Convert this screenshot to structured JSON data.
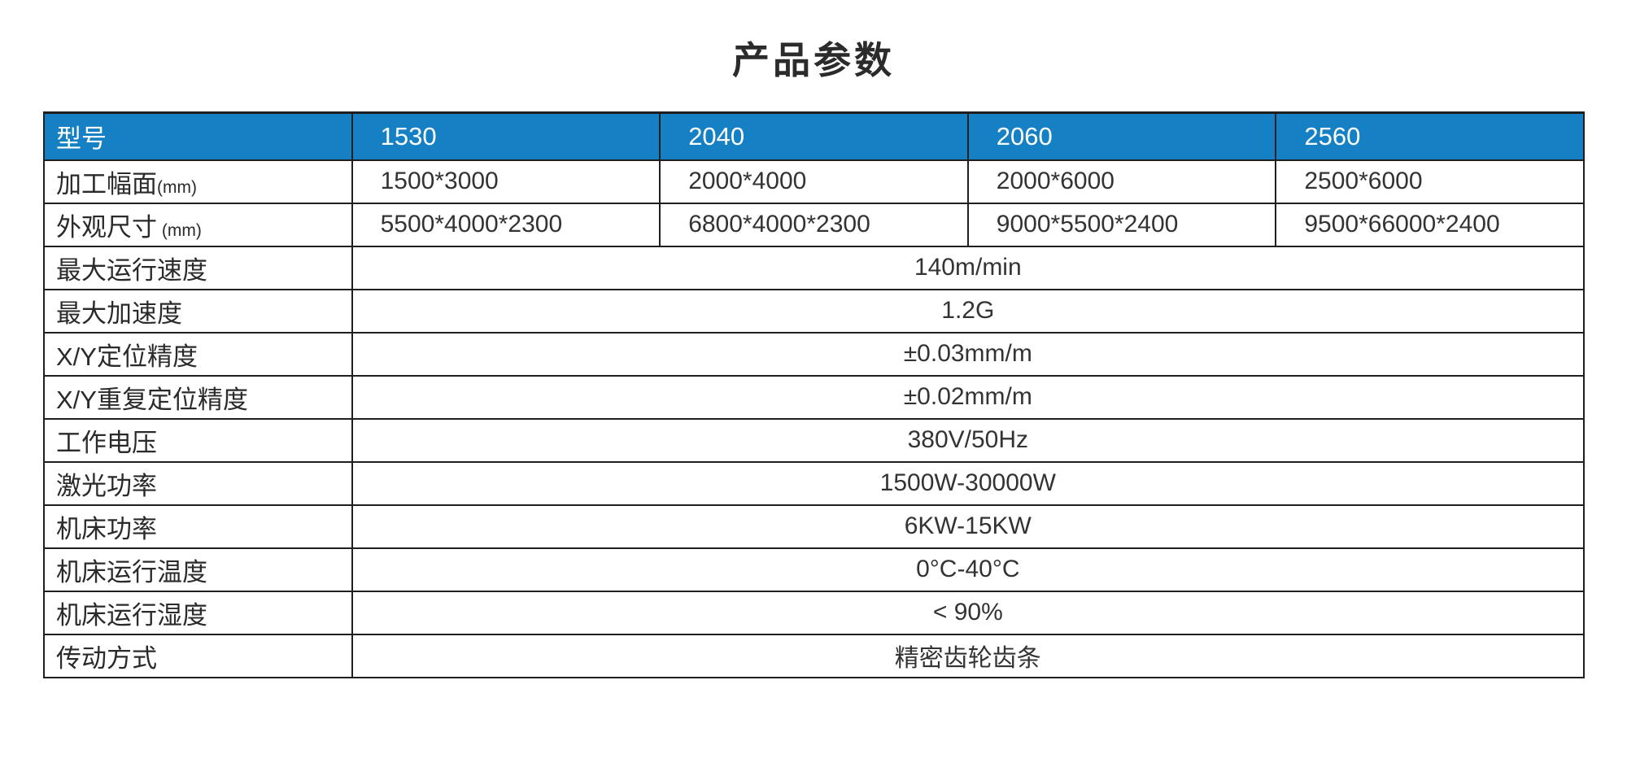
{
  "title": "产品参数",
  "colors": {
    "header_bg": "#1680c4",
    "header_text": "#ffffff",
    "border": "#1f1f1f",
    "body_text": "#333333"
  },
  "table": {
    "header": {
      "label": "型号",
      "models": [
        "1530",
        "2040",
        "2060",
        "2560"
      ]
    },
    "model_rows": [
      {
        "label": "加工幅面",
        "unit": "(mm)",
        "values": [
          "1500*3000",
          "2000*4000",
          "2000*6000",
          "2500*6000"
        ]
      },
      {
        "label": "外观尺寸",
        "unit": " (mm)",
        "values": [
          "5500*4000*2300",
          "6800*4000*2300",
          "9000*5500*2400",
          "9500*66000*2400"
        ]
      }
    ],
    "shared_rows": [
      {
        "label": "最大运行速度",
        "value": "140m/min"
      },
      {
        "label": "最大加速度",
        "value": "1.2G"
      },
      {
        "label": "X/Y定位精度",
        "value": "±0.03mm/m"
      },
      {
        "label": "X/Y重复定位精度",
        "value": "±0.02mm/m"
      },
      {
        "label": "工作电压",
        "value": "380V/50Hz"
      },
      {
        "label": "激光功率",
        "value": "1500W-30000W"
      },
      {
        "label": "机床功率",
        "value": "6KW-15KW"
      },
      {
        "label": "机床运行温度",
        "value": "0°C-40°C"
      },
      {
        "label": "机床运行湿度",
        "value": "< 90%"
      },
      {
        "label": "传动方式",
        "value": "精密齿轮齿条"
      }
    ]
  }
}
